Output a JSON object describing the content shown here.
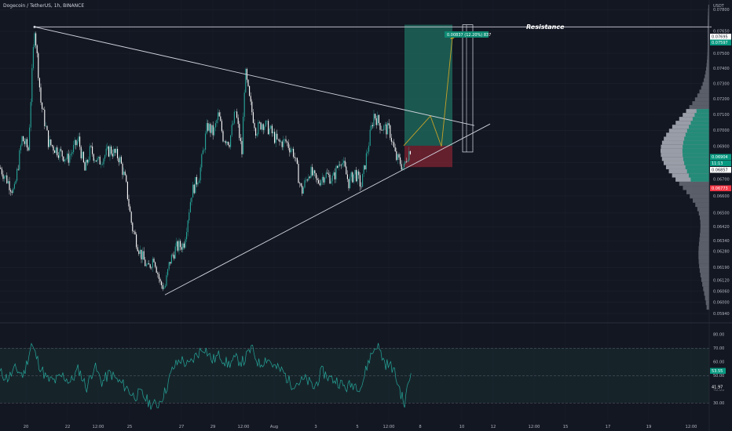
{
  "header": {
    "symbol_title": "Dogecoin / TetherUS, 1h, BINANCE",
    "currency": "USDT"
  },
  "annotations": {
    "resistance": "Resistance",
    "target_label": "0.00837 (12.20%) 837"
  },
  "colors": {
    "background": "#131722",
    "candle_up": "#26a69a",
    "candle_down": "#ffffff",
    "profit_zone": "#1f6f60",
    "loss_zone": "#7a2332",
    "volume_profile_up": "#1f8a76",
    "volume_profile_down": "#b2b5be",
    "projection_path": "#c9a227",
    "rsi_line": "#26a69a"
  },
  "chart_data": [
    {
      "type": "line",
      "title": "Dogecoin / TetherUS, 1h, BINANCE",
      "ylabel": "USDT",
      "ylim": [
        0.0594,
        0.0784
      ],
      "y_scale": "log",
      "y_ticks": [
        "0.07800",
        "0.07650",
        "0.07500",
        "0.07400",
        "0.07300",
        "0.07200",
        "0.07100",
        "0.07000",
        "0.06900",
        "0.06800",
        "0.06700",
        "0.06600",
        "0.06500",
        "0.06420",
        "0.06340",
        "0.06280",
        "0.06190",
        "0.06120",
        "0.06060",
        "0.06000",
        "0.05940"
      ],
      "price_tags": [
        {
          "label": "0.07695",
          "kind": "white"
        },
        {
          "label": "0.07597",
          "kind": "green"
        },
        {
          "label": "0.06904",
          "kind": "green"
        },
        {
          "label": "11:13",
          "kind": "green"
        },
        {
          "label": "0.06857",
          "kind": "white"
        },
        {
          "label": "0.06773",
          "kind": "red"
        }
      ],
      "x_ticks": [
        "20",
        "22",
        "12:00",
        "25",
        "27",
        "29",
        "12:00",
        "Aug",
        "3",
        "5",
        "12:00",
        "8",
        "10",
        "12",
        "12:00",
        "15",
        "17",
        "19",
        "12:00"
      ],
      "series": [
        {
          "x": [
            0,
            18,
            28,
            36,
            44,
            52,
            62,
            72,
            86,
            100,
            108,
            115,
            125,
            140,
            152,
            160,
            168,
            178,
            188,
            196,
            204,
            210,
            216,
            224,
            234,
            244,
            254,
            264,
            272,
            278,
            284,
            292,
            300,
            308,
            312,
            318,
            326,
            334,
            344,
            354,
            364,
            374,
            384,
            394,
            404,
            414,
            424,
            434,
            444,
            452,
            460,
            468,
            476,
            486,
            496,
            504,
            510,
            514,
            518,
            524
          ],
          "values": [
            0.0677,
            0.0662,
            0.0695,
            0.0688,
            0.0768,
            0.0718,
            0.0692,
            0.0688,
            0.0682,
            0.0694,
            0.0675,
            0.0688,
            0.068,
            0.0688,
            0.0683,
            0.0668,
            0.0642,
            0.0628,
            0.0618,
            0.0625,
            0.061,
            0.0608,
            0.0622,
            0.063,
            0.0632,
            0.0662,
            0.0673,
            0.0703,
            0.0698,
            0.071,
            0.0696,
            0.0693,
            0.0712,
            0.0686,
            0.0738,
            0.0718,
            0.07,
            0.0705,
            0.07,
            0.0692,
            0.0693,
            0.0686,
            0.0662,
            0.0675,
            0.0668,
            0.0673,
            0.067,
            0.0683,
            0.0668,
            0.0674,
            0.0666,
            0.0688,
            0.071,
            0.0702,
            0.07,
            0.0683,
            0.068,
            0.0676,
            0.0684,
            0.069
          ]
        }
      ],
      "trendlines": [
        {
          "name": "resistance",
          "points": [
            [
              44,
              0.0768
            ],
            [
              604,
              0.0703
            ]
          ]
        },
        {
          "name": "support",
          "points": [
            [
              210,
              0.0604
            ],
            [
              624,
              0.0704
            ]
          ]
        },
        {
          "name": "horizontal",
          "points": [
            [
              44,
              0.0768
            ],
            [
              906,
              0.0768
            ]
          ]
        }
      ],
      "position": {
        "entry": 0.06904,
        "target": 0.07695,
        "stop": 0.06773
      },
      "projection_path": [
        [
          514,
          0.06904
        ],
        [
          548,
          0.0709
        ],
        [
          562,
          0.069
        ],
        [
          576,
          0.0761
        ]
      ]
    },
    {
      "type": "line",
      "title": "RSI",
      "ylim": [
        21,
        85
      ],
      "y_ticks": [
        "80.00",
        "70.00",
        "60.00",
        "50.00",
        "40.00",
        "30.00"
      ],
      "bands": [
        30,
        70
      ],
      "midline": 50,
      "tags": [
        "53.55",
        "41.97"
      ],
      "series": [
        {
          "x": [
            0,
            10,
            20,
            30,
            40,
            50,
            60,
            70,
            80,
            90,
            100,
            110,
            120,
            130,
            140,
            150,
            160,
            170,
            180,
            190,
            200,
            210,
            220,
            230,
            240,
            250,
            260,
            270,
            280,
            290,
            300,
            310,
            320,
            330,
            340,
            350,
            360,
            370,
            380,
            390,
            400,
            410,
            420,
            430,
            440,
            450,
            460,
            470,
            480,
            490,
            500,
            510,
            515,
            520,
            524
          ],
          "values": [
            52,
            48,
            55,
            50,
            73,
            58,
            47,
            46,
            50,
            45,
            55,
            41,
            57,
            45,
            52,
            46,
            42,
            35,
            37,
            30,
            28,
            38,
            55,
            62,
            57,
            65,
            71,
            61,
            65,
            58,
            62,
            60,
            70,
            58,
            63,
            56,
            53,
            44,
            45,
            47,
            41,
            53,
            48,
            46,
            41,
            44,
            42,
            62,
            73,
            59,
            56,
            38,
            28,
            45,
            53
          ]
        }
      ]
    }
  ]
}
